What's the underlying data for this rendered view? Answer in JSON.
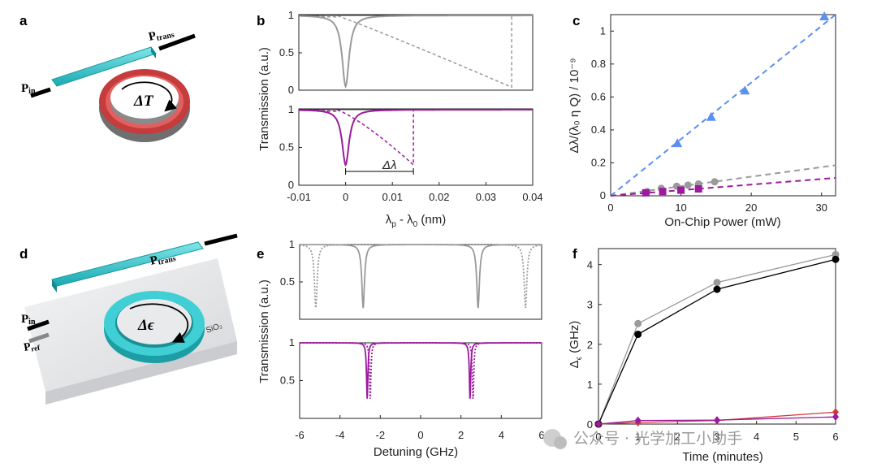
{
  "panel_labels": [
    "a",
    "b",
    "c",
    "d",
    "e",
    "f"
  ],
  "illustrations": {
    "a": {
      "p_in": "P",
      "p_in_sub": "in",
      "p_trans": "P",
      "p_trans_sub": "trans",
      "ring_label": "ΔT"
    },
    "d": {
      "p_in": "P",
      "p_in_sub": "in",
      "p_ref": "P",
      "p_ref_sub": "ref",
      "p_trans": "P",
      "p_trans_sub": "trans",
      "ring_label": "Δϵ",
      "substrate_label": "SiO₂"
    }
  },
  "watermark": "公众号 · 光学加工小助手",
  "colors": {
    "cyan": "#33c9cf",
    "red": "#d23a3a",
    "gray": "#9a9a9a",
    "purple": "#9b1a9e",
    "blue": "#5b8ff0",
    "black": "#000000"
  },
  "chart_data": [
    {
      "id": "b",
      "type": "line",
      "ylabel": "Transmission (a.u.)",
      "xlabel_main": "λ",
      "xlabel_sub1": "p",
      "xlabel_mid": " - λ",
      "xlabel_sub2": "0",
      "xlabel_tail": " (nm)",
      "xlim": [
        -0.01,
        0.04
      ],
      "xticks": [
        "-0.01",
        "0",
        "0.01",
        "0.02",
        "0.03",
        "0.04"
      ],
      "top_yticks": [
        "0",
        "0.5",
        "1"
      ],
      "bottom_yticks": [
        "0",
        "0.5",
        "1"
      ],
      "top": {
        "cold_dip_center": 0.0,
        "cold_dip_min": 0.05,
        "thermal_edge": 0.0355,
        "thermal_edge_min": 0.04
      },
      "bottom": {
        "cold_dip_center": 0.0,
        "cold_dip_min": 0.27,
        "thermal_edge": 0.0145,
        "thermal_edge_min": 0.27
      },
      "annotation": "Δλ"
    },
    {
      "id": "c",
      "type": "scatter",
      "xlabel": "On-Chip Power (mW)",
      "ylabel": "Δλ/(λ₀ η  Q) / 10⁻⁹",
      "xlim": [
        0,
        32
      ],
      "ylim": [
        0,
        1.1
      ],
      "xticks": [
        "0",
        "10",
        "20",
        "30"
      ],
      "yticks": [
        "0",
        "0.2",
        "0.4",
        "0.6",
        "0.8",
        "1"
      ],
      "series": [
        {
          "name": "blue triangles",
          "marker": "triangle",
          "x": [
            9.5,
            14.3,
            19.1,
            30.4
          ],
          "y": [
            0.32,
            0.48,
            0.64,
            1.09
          ],
          "fit_slope": 0.0355
        },
        {
          "name": "gray circles",
          "marker": "circle",
          "x": [
            5.2,
            7.2,
            9.4,
            11.0,
            12.5,
            14.8
          ],
          "y": [
            0.025,
            0.045,
            0.058,
            0.065,
            0.072,
            0.085
          ],
          "fit_slope": 0.0058
        },
        {
          "name": "purple squares",
          "marker": "square",
          "x": [
            5.0,
            7.4,
            10.0,
            12.5
          ],
          "y": [
            0.018,
            0.026,
            0.034,
            0.042
          ],
          "fit_slope": 0.0034
        }
      ]
    },
    {
      "id": "e",
      "type": "line",
      "ylabel": "Transmission (a.u.)",
      "xlabel": "Detuning (GHz)",
      "xlim": [
        -6,
        6
      ],
      "xticks": [
        "-6",
        "-4",
        "-2",
        "0",
        "2",
        "4",
        "6"
      ],
      "top_yticks": [
        "0.5",
        "1"
      ],
      "bottom_yticks": [
        "0.5",
        "1"
      ],
      "top": {
        "solid_dips": [
          -2.85,
          2.85
        ],
        "dotted_dips": [
          -5.2,
          5.2
        ],
        "dip_min": 0.15
      },
      "bottom": {
        "solid_dips": [
          -2.65,
          2.45
        ],
        "dotted_dips": [
          -2.5,
          2.6
        ],
        "dip_min": 0.25
      }
    },
    {
      "id": "f",
      "type": "line",
      "xlabel": "Time (minutes)",
      "ylabel": "Δ",
      "ylabel_sub": "ϵ",
      "ylabel_tail": " (GHz)",
      "xlim": [
        0,
        6
      ],
      "ylim": [
        0,
        4.4
      ],
      "xticks": [
        "0",
        "1",
        "2",
        "3",
        "4",
        "5",
        "6"
      ],
      "yticks": [
        "0",
        "1",
        "2",
        "3",
        "4"
      ],
      "series": [
        {
          "name": "gray",
          "x": [
            0,
            1,
            3,
            6
          ],
          "y": [
            0,
            2.52,
            3.55,
            4.25
          ]
        },
        {
          "name": "black",
          "x": [
            0,
            1,
            3,
            6
          ],
          "y": [
            0,
            2.25,
            3.38,
            4.13
          ]
        },
        {
          "name": "red",
          "x": [
            0,
            1,
            3,
            6
          ],
          "y": [
            0,
            0.04,
            0.09,
            0.3
          ]
        },
        {
          "name": "purple",
          "x": [
            0,
            1,
            3,
            6
          ],
          "y": [
            0,
            0.09,
            0.1,
            0.18
          ]
        }
      ]
    }
  ]
}
